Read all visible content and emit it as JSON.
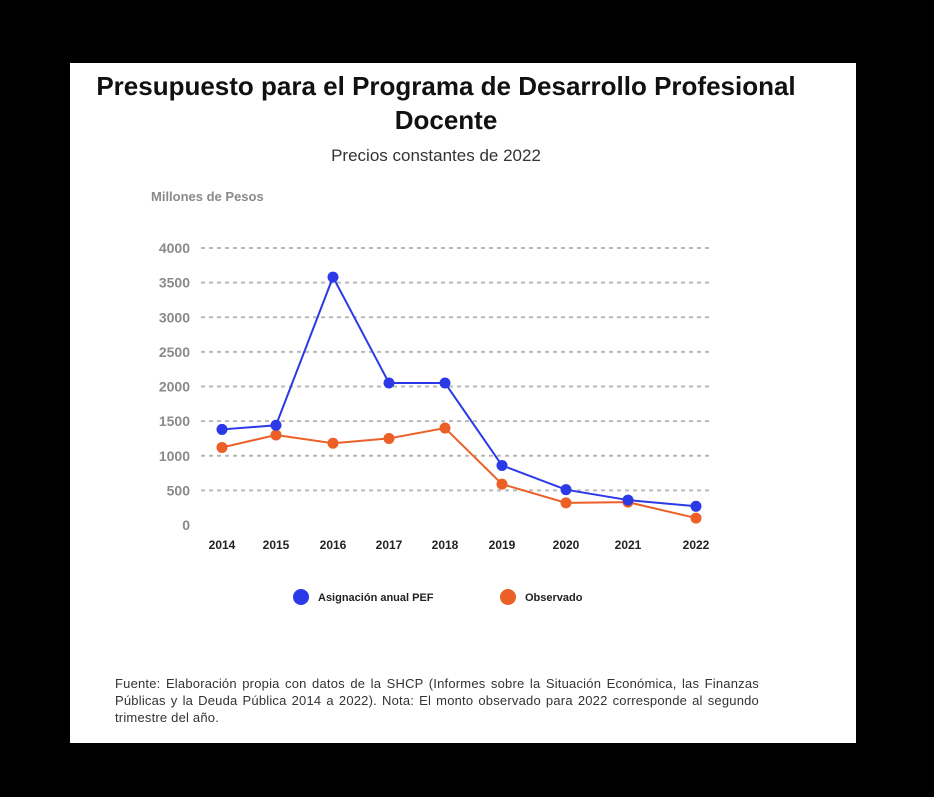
{
  "colors": {
    "series1": "#2b3ae6",
    "series2": "#ec5f26",
    "grid": "#b8b8b8",
    "tick": "#8a8a8a"
  },
  "chart_data": {
    "type": "line",
    "title": "Presupuesto para el Programa de Desarrollo Profesional Docente",
    "subtitle": "Precios constantes de 2022",
    "ylabel": "Millones de Pesos",
    "xlabel": "",
    "categories": [
      "2014",
      "2015",
      "2016",
      "2017",
      "2018",
      "2019",
      "2020",
      "2021",
      "2022"
    ],
    "yticks": [
      4000,
      3500,
      3000,
      2500,
      2000,
      1500,
      1000,
      500,
      0
    ],
    "ylim": [
      0,
      4000
    ],
    "grid": true,
    "legend_position": "bottom",
    "series": [
      {
        "name": "Asignación anual PEF",
        "values": [
          1380,
          1440,
          3580,
          2050,
          2050,
          860,
          510,
          360,
          270
        ]
      },
      {
        "name": "Observado",
        "values": [
          1120,
          1300,
          1180,
          1250,
          1400,
          590,
          320,
          330,
          100
        ]
      }
    ]
  },
  "source_note": "Fuente: Elaboración propia con datos de la SHCP (Informes sobre la Situación Económica, las Finanzas Públicas y la Deuda Pública 2014 a 2022). Nota: El monto observado para 2022 corresponde al segundo trimestre del año."
}
